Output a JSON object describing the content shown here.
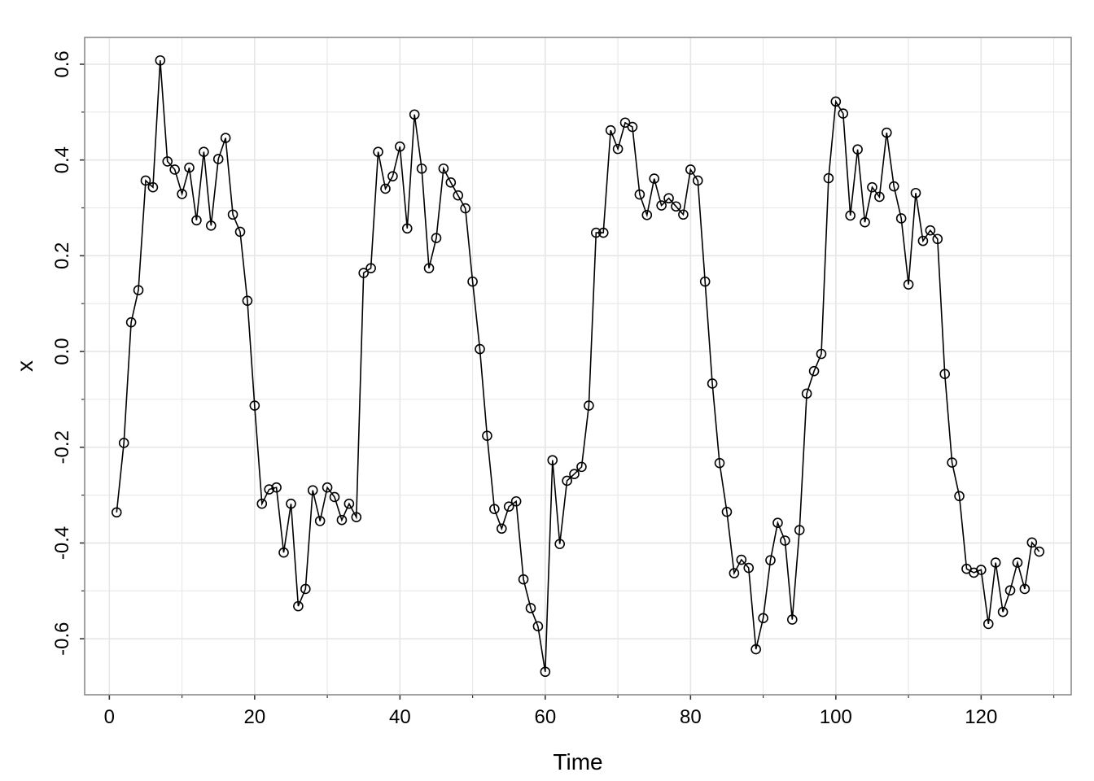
{
  "chart_data": {
    "type": "line",
    "title": "",
    "xlabel": "Time",
    "ylabel": "x",
    "xlim": [
      -3.4,
      132.4
    ],
    "ylim": [
      -0.717,
      0.656
    ],
    "xticks": [
      0,
      20,
      40,
      60,
      80,
      100,
      120
    ],
    "xtick_labels": [
      "0",
      "20",
      "40",
      "60",
      "80",
      "100",
      "120"
    ],
    "yticks": [
      -0.6,
      -0.4,
      -0.2,
      0.0,
      0.2,
      0.4,
      0.6
    ],
    "ytick_labels": [
      "-0.6",
      "-0.4",
      "-0.2",
      "0.0",
      "0.2",
      "0.4",
      "0.6"
    ],
    "grid": true,
    "markers": "open-circle",
    "colors": {
      "line": "#000000",
      "grid": "#e6e6e6",
      "frame": "#8c8c8c"
    },
    "x": [
      1,
      2,
      3,
      4,
      5,
      6,
      7,
      8,
      9,
      10,
      11,
      12,
      13,
      14,
      15,
      16,
      17,
      18,
      19,
      20,
      21,
      22,
      23,
      24,
      25,
      26,
      27,
      28,
      29,
      30,
      31,
      32,
      33,
      34,
      35,
      36,
      37,
      38,
      39,
      40,
      41,
      42,
      43,
      44,
      45,
      46,
      47,
      48,
      49,
      50,
      51,
      52,
      53,
      54,
      55,
      56,
      57,
      58,
      59,
      60,
      61,
      62,
      63,
      64,
      65,
      66,
      67,
      68,
      69,
      70,
      71,
      72,
      73,
      74,
      75,
      76,
      77,
      78,
      79,
      80,
      81,
      82,
      83,
      84,
      85,
      86,
      87,
      88,
      89,
      90,
      91,
      92,
      93,
      94,
      95,
      96,
      97,
      98,
      99,
      100,
      101,
      102,
      103,
      104,
      105,
      106,
      107,
      108,
      109,
      110,
      111,
      112,
      113,
      114,
      115,
      116,
      117,
      118,
      119,
      120,
      121,
      122,
      123,
      124,
      125,
      126,
      127,
      128
    ],
    "series": [
      {
        "values": [
          -0.336,
          -0.191,
          0.061,
          0.128,
          0.357,
          0.343,
          0.608,
          0.397,
          0.38,
          0.329,
          0.384,
          0.274,
          0.417,
          0.263,
          0.402,
          0.446,
          0.286,
          0.25,
          0.106,
          -0.113,
          -0.318,
          -0.288,
          -0.284,
          -0.42,
          -0.318,
          -0.532,
          -0.496,
          -0.29,
          -0.354,
          -0.284,
          -0.304,
          -0.352,
          -0.318,
          -0.346,
          0.164,
          0.174,
          0.417,
          0.34,
          0.366,
          0.428,
          0.257,
          0.495,
          0.382,
          0.174,
          0.237,
          0.382,
          0.353,
          0.326,
          0.299,
          0.146,
          0.005,
          -0.176,
          -0.329,
          -0.37,
          -0.324,
          -0.313,
          -0.476,
          -0.536,
          -0.574,
          -0.669,
          -0.227,
          -0.402,
          -0.27,
          -0.256,
          -0.241,
          -0.113,
          0.248,
          0.248,
          0.462,
          0.423,
          0.478,
          0.469,
          0.328,
          0.285,
          0.361,
          0.305,
          0.32,
          0.303,
          0.286,
          0.38,
          0.357,
          0.146,
          -0.067,
          -0.233,
          -0.335,
          -0.463,
          -0.435,
          -0.452,
          -0.622,
          -0.557,
          -0.436,
          -0.358,
          -0.395,
          -0.56,
          -0.373,
          -0.088,
          -0.041,
          -0.005,
          0.362,
          0.522,
          0.497,
          0.284,
          0.422,
          0.27,
          0.343,
          0.323,
          0.457,
          0.345,
          0.278,
          0.14,
          0.331,
          0.231,
          0.253,
          0.235,
          -0.047,
          -0.232,
          -0.302,
          -0.454,
          -0.462,
          -0.456,
          -0.569,
          -0.441,
          -0.544,
          -0.499,
          -0.441,
          -0.496,
          -0.399,
          -0.418
        ]
      }
    ]
  }
}
